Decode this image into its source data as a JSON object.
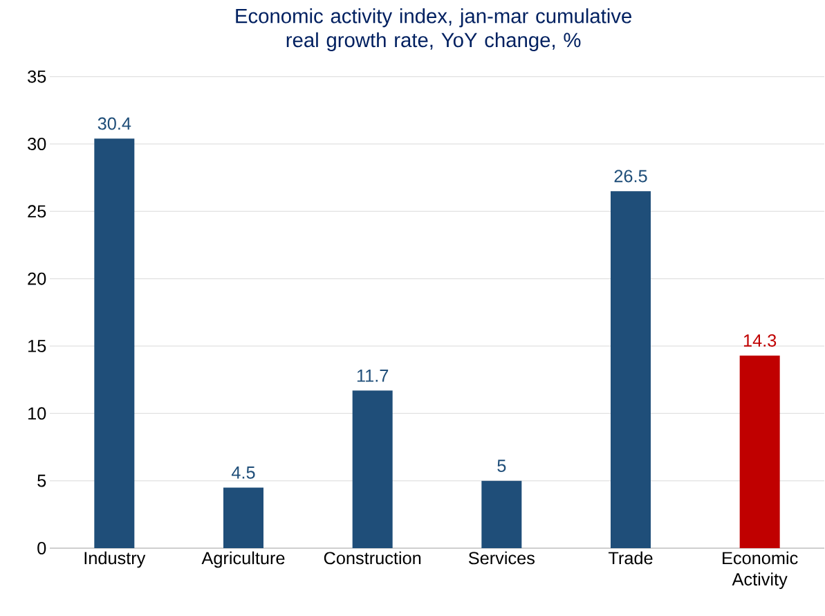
{
  "chart_data": {
    "type": "bar",
    "title": "Economic activity index, jan-mar cumulative real growth rate, YoY change, %",
    "categories": [
      "Industry",
      "Agriculture",
      "Construction",
      "Services",
      "Trade",
      "Economic Activity"
    ],
    "values": [
      30.4,
      4.5,
      11.7,
      5,
      26.5,
      14.3
    ],
    "colors": [
      "#1f4e79",
      "#1f4e79",
      "#1f4e79",
      "#1f4e79",
      "#1f4e79",
      "#c00000"
    ],
    "ylim": [
      0,
      35
    ],
    "yticks": [
      0,
      5,
      10,
      15,
      20,
      25,
      30,
      35
    ],
    "grid": "y",
    "data_labels": true
  }
}
